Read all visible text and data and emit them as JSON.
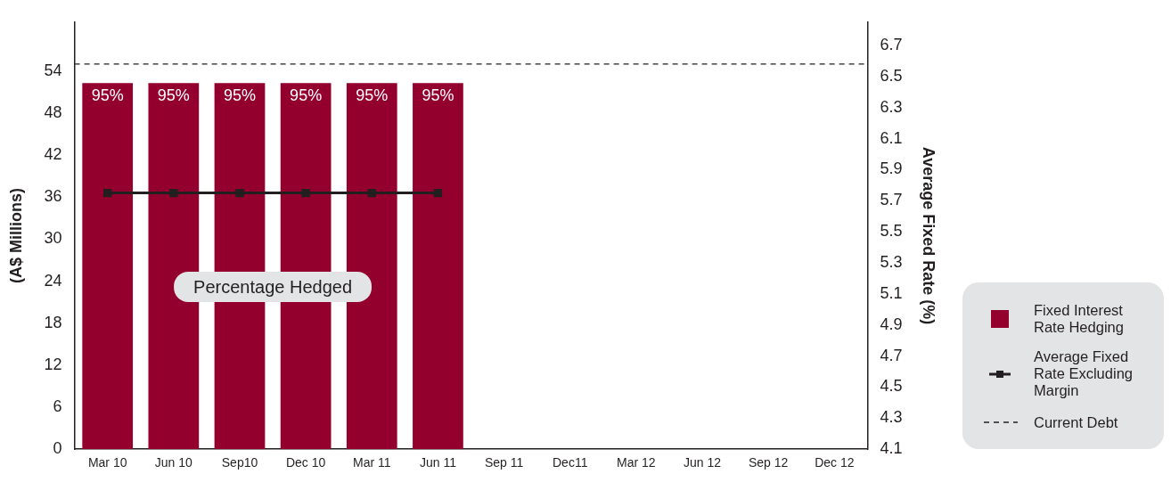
{
  "chart_data": {
    "type": "bar",
    "ylabel": "(A$ Millions)",
    "y2label": "Average Fixed Rate (%)",
    "categories": [
      "Mar 10",
      "Jun 10",
      "Sep10",
      "Dec 10",
      "Mar 11",
      "Jun 11",
      "Sep 11",
      "Dec11",
      "Mar 12",
      "Jun 12",
      "Sep 12",
      "Dec 12"
    ],
    "series": [
      {
        "name": "Fixed Interest Rate Hedging",
        "color": "#93002d",
        "values": [
          52.3,
          52.3,
          52.3,
          52.3,
          52.3,
          52.3,
          null,
          null,
          null,
          null,
          null,
          null
        ]
      },
      {
        "name": "Average Fixed Rate Excluding Margin",
        "type": "line",
        "axis": "y2",
        "color": "#231f20",
        "marker": "square",
        "line_style": "solid",
        "values": [
          5.75,
          5.75,
          5.75,
          5.75,
          5.75,
          5.75,
          null,
          null,
          null,
          null,
          null,
          null
        ]
      }
    ],
    "ylim": [
      0,
      61
    ],
    "yticks": [
      0,
      6,
      12,
      18,
      24,
      30,
      36,
      42,
      48,
      54
    ],
    "y2lim": [
      4.1,
      6.85
    ],
    "y2ticks": [
      4.1,
      4.3,
      4.5,
      4.7,
      4.9,
      5.1,
      5.3,
      5.5,
      5.7,
      5.9,
      6.1,
      6.3,
      6.5,
      6.7
    ],
    "ref_lines": [
      {
        "axis": "y",
        "value": 55,
        "label": "Current Debt",
        "color": "#231f20",
        "line_style": "dashed"
      }
    ],
    "annotations": [
      "Percentage Hedged",
      {
        "text": "95%",
        "x": "Mar 10",
        "y": 52.3
      },
      {
        "text": "95%",
        "x": "Jun 10",
        "y": 52.3
      },
      {
        "text": "95%",
        "x": "Sep10",
        "y": 52.3
      },
      {
        "text": "95%",
        "x": "Dec 10",
        "y": 52.3
      },
      {
        "text": "95%",
        "x": "Mar 11",
        "y": 52.3
      },
      {
        "text": "95%",
        "x": "Jun 11",
        "y": 52.3
      }
    ],
    "grid": false,
    "legend": "right"
  }
}
